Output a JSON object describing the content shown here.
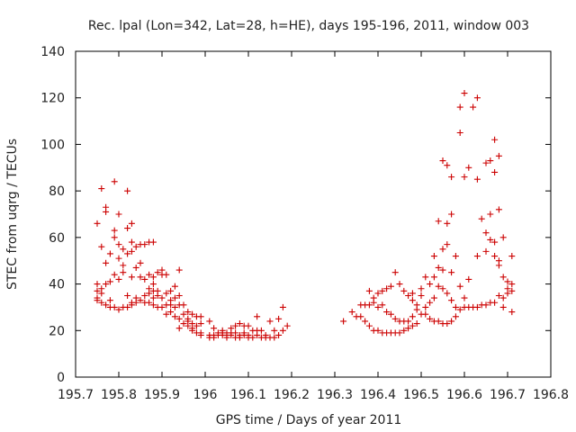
{
  "chart_data": {
    "type": "scatter",
    "title": "Rec. lpal (Lon=342, Lat=28, h=HE), days 195-196, 2011, window 003",
    "xlabel": "GPS time / Days of year 2011",
    "ylabel": "STEC from uqrg / TECUs",
    "xlim": [
      195.7,
      196.8
    ],
    "ylim": [
      0,
      140
    ],
    "xticks": [
      "195.7",
      "195.8",
      "195.9",
      "196",
      "196.1",
      "196.2",
      "196.3",
      "196.4",
      "196.5",
      "196.6",
      "196.7",
      "196.8"
    ],
    "yticks": [
      "0",
      "20",
      "40",
      "60",
      "80",
      "100",
      "120",
      "140"
    ],
    "marker": "plus",
    "color": "#cc0000",
    "grid": false,
    "legend": "none",
    "points": [
      [
        195.75,
        66
      ],
      [
        195.75,
        40
      ],
      [
        195.75,
        37
      ],
      [
        195.75,
        34
      ],
      [
        195.75,
        33
      ],
      [
        195.76,
        81
      ],
      [
        195.76,
        56
      ],
      [
        195.76,
        38
      ],
      [
        195.76,
        36
      ],
      [
        195.76,
        32
      ],
      [
        195.77,
        73
      ],
      [
        195.77,
        71
      ],
      [
        195.77,
        49
      ],
      [
        195.77,
        40
      ],
      [
        195.77,
        31
      ],
      [
        195.78,
        53
      ],
      [
        195.78,
        41
      ],
      [
        195.78,
        33
      ],
      [
        195.78,
        30
      ],
      [
        195.79,
        84
      ],
      [
        195.79,
        63
      ],
      [
        195.79,
        60
      ],
      [
        195.79,
        44
      ],
      [
        195.79,
        30
      ],
      [
        195.8,
        70
      ],
      [
        195.8,
        57
      ],
      [
        195.8,
        51
      ],
      [
        195.8,
        42
      ],
      [
        195.8,
        29
      ],
      [
        195.81,
        55
      ],
      [
        195.81,
        48
      ],
      [
        195.81,
        45
      ],
      [
        195.81,
        30
      ],
      [
        195.82,
        80
      ],
      [
        195.82,
        64
      ],
      [
        195.82,
        53
      ],
      [
        195.82,
        35
      ],
      [
        195.82,
        30
      ],
      [
        195.83,
        66
      ],
      [
        195.83,
        58
      ],
      [
        195.83,
        54
      ],
      [
        195.83,
        43
      ],
      [
        195.83,
        32
      ],
      [
        195.83,
        31
      ],
      [
        195.84,
        56
      ],
      [
        195.84,
        47
      ],
      [
        195.84,
        34
      ],
      [
        195.84,
        32
      ],
      [
        195.85,
        57
      ],
      [
        195.85,
        49
      ],
      [
        195.85,
        43
      ],
      [
        195.85,
        33
      ],
      [
        195.86,
        57
      ],
      [
        195.86,
        42
      ],
      [
        195.86,
        35
      ],
      [
        195.86,
        32
      ],
      [
        195.87,
        58
      ],
      [
        195.87,
        44
      ],
      [
        195.87,
        38
      ],
      [
        195.87,
        36
      ],
      [
        195.87,
        32
      ],
      [
        195.88,
        58
      ],
      [
        195.88,
        43
      ],
      [
        195.88,
        40
      ],
      [
        195.88,
        37
      ],
      [
        195.88,
        34
      ],
      [
        195.88,
        31
      ],
      [
        195.89,
        45
      ],
      [
        195.89,
        37
      ],
      [
        195.89,
        35
      ],
      [
        195.89,
        30
      ],
      [
        195.9,
        46
      ],
      [
        195.9,
        44
      ],
      [
        195.9,
        34
      ],
      [
        195.9,
        30
      ],
      [
        195.91,
        44
      ],
      [
        195.91,
        36
      ],
      [
        195.91,
        31
      ],
      [
        195.91,
        27
      ],
      [
        195.92,
        37
      ],
      [
        195.92,
        33
      ],
      [
        195.92,
        31
      ],
      [
        195.92,
        28
      ],
      [
        195.93,
        39
      ],
      [
        195.93,
        34
      ],
      [
        195.93,
        30
      ],
      [
        195.93,
        26
      ],
      [
        195.94,
        46
      ],
      [
        195.94,
        35
      ],
      [
        195.94,
        31
      ],
      [
        195.94,
        25
      ],
      [
        195.94,
        21
      ],
      [
        195.95,
        31
      ],
      [
        195.95,
        27
      ],
      [
        195.95,
        23
      ],
      [
        195.96,
        28
      ],
      [
        195.96,
        25
      ],
      [
        195.96,
        24
      ],
      [
        195.96,
        22
      ],
      [
        195.97,
        27
      ],
      [
        195.97,
        23
      ],
      [
        195.97,
        21
      ],
      [
        195.97,
        20
      ],
      [
        195.98,
        26
      ],
      [
        195.98,
        22
      ],
      [
        195.98,
        19
      ],
      [
        195.99,
        26
      ],
      [
        195.99,
        23
      ],
      [
        195.99,
        19
      ],
      [
        195.99,
        18
      ],
      [
        196.01,
        24
      ],
      [
        196.01,
        18
      ],
      [
        196.01,
        17
      ],
      [
        196.02,
        21
      ],
      [
        196.02,
        18
      ],
      [
        196.02,
        17
      ],
      [
        196.03,
        19
      ],
      [
        196.03,
        18
      ],
      [
        196.04,
        20
      ],
      [
        196.04,
        19
      ],
      [
        196.04,
        18
      ],
      [
        196.05,
        19
      ],
      [
        196.05,
        18
      ],
      [
        196.05,
        17
      ],
      [
        196.06,
        21
      ],
      [
        196.06,
        19
      ],
      [
        196.06,
        18
      ],
      [
        196.07,
        22
      ],
      [
        196.07,
        19
      ],
      [
        196.07,
        17
      ],
      [
        196.08,
        23
      ],
      [
        196.08,
        18
      ],
      [
        196.08,
        17
      ],
      [
        196.09,
        22
      ],
      [
        196.09,
        19
      ],
      [
        196.09,
        18
      ],
      [
        196.1,
        22
      ],
      [
        196.1,
        18
      ],
      [
        196.1,
        17
      ],
      [
        196.11,
        20
      ],
      [
        196.11,
        17
      ],
      [
        196.12,
        26
      ],
      [
        196.12,
        20
      ],
      [
        196.12,
        18
      ],
      [
        196.13,
        20
      ],
      [
        196.13,
        17
      ],
      [
        196.14,
        18
      ],
      [
        196.14,
        17
      ],
      [
        196.15,
        24
      ],
      [
        196.15,
        17
      ],
      [
        196.16,
        20
      ],
      [
        196.16,
        17
      ],
      [
        196.17,
        25
      ],
      [
        196.17,
        18
      ],
      [
        196.18,
        30
      ],
      [
        196.18,
        20
      ],
      [
        196.19,
        22
      ],
      [
        196.32,
        24
      ],
      [
        196.34,
        28
      ],
      [
        196.35,
        26
      ],
      [
        196.36,
        31
      ],
      [
        196.36,
        26
      ],
      [
        196.37,
        31
      ],
      [
        196.37,
        24
      ],
      [
        196.38,
        37
      ],
      [
        196.38,
        31
      ],
      [
        196.38,
        22
      ],
      [
        196.39,
        34
      ],
      [
        196.39,
        32
      ],
      [
        196.39,
        20
      ],
      [
        196.4,
        36
      ],
      [
        196.4,
        30
      ],
      [
        196.4,
        20
      ],
      [
        196.41,
        37
      ],
      [
        196.41,
        31
      ],
      [
        196.41,
        19
      ],
      [
        196.42,
        38
      ],
      [
        196.42,
        28
      ],
      [
        196.42,
        19
      ],
      [
        196.43,
        39
      ],
      [
        196.43,
        27
      ],
      [
        196.43,
        19
      ],
      [
        196.44,
        45
      ],
      [
        196.44,
        25
      ],
      [
        196.44,
        19
      ],
      [
        196.45,
        40
      ],
      [
        196.45,
        24
      ],
      [
        196.45,
        19
      ],
      [
        196.46,
        37
      ],
      [
        196.46,
        24
      ],
      [
        196.46,
        20
      ],
      [
        196.47,
        35
      ],
      [
        196.47,
        24
      ],
      [
        196.47,
        21
      ],
      [
        196.48,
        36
      ],
      [
        196.48,
        33
      ],
      [
        196.48,
        26
      ],
      [
        196.48,
        22
      ],
      [
        196.49,
        31
      ],
      [
        196.49,
        29
      ],
      [
        196.49,
        23
      ],
      [
        196.5,
        38
      ],
      [
        196.5,
        35
      ],
      [
        196.5,
        27
      ],
      [
        196.51,
        43
      ],
      [
        196.51,
        30
      ],
      [
        196.51,
        27
      ],
      [
        196.52,
        40
      ],
      [
        196.52,
        32
      ],
      [
        196.52,
        25
      ],
      [
        196.53,
        52
      ],
      [
        196.53,
        43
      ],
      [
        196.53,
        34
      ],
      [
        196.53,
        24
      ],
      [
        196.54,
        67
      ],
      [
        196.54,
        47
      ],
      [
        196.54,
        39
      ],
      [
        196.54,
        24
      ],
      [
        196.55,
        93
      ],
      [
        196.55,
        55
      ],
      [
        196.55,
        46
      ],
      [
        196.55,
        38
      ],
      [
        196.55,
        23
      ],
      [
        196.56,
        91
      ],
      [
        196.56,
        66
      ],
      [
        196.56,
        57
      ],
      [
        196.56,
        36
      ],
      [
        196.56,
        23
      ],
      [
        196.57,
        86
      ],
      [
        196.57,
        70
      ],
      [
        196.57,
        45
      ],
      [
        196.57,
        33
      ],
      [
        196.57,
        24
      ],
      [
        196.58,
        52
      ],
      [
        196.58,
        30
      ],
      [
        196.58,
        26
      ],
      [
        196.59,
        116
      ],
      [
        196.59,
        105
      ],
      [
        196.59,
        39
      ],
      [
        196.59,
        29
      ],
      [
        196.6,
        122
      ],
      [
        196.6,
        86
      ],
      [
        196.6,
        34
      ],
      [
        196.6,
        30
      ],
      [
        196.61,
        90
      ],
      [
        196.61,
        42
      ],
      [
        196.61,
        30
      ],
      [
        196.62,
        116
      ],
      [
        196.62,
        30
      ],
      [
        196.63,
        120
      ],
      [
        196.63,
        85
      ],
      [
        196.63,
        52
      ],
      [
        196.63,
        30
      ],
      [
        196.64,
        68
      ],
      [
        196.64,
        31
      ],
      [
        196.65,
        92
      ],
      [
        196.65,
        62
      ],
      [
        196.65,
        54
      ],
      [
        196.65,
        31
      ],
      [
        196.66,
        93
      ],
      [
        196.66,
        70
      ],
      [
        196.66,
        59
      ],
      [
        196.66,
        32
      ],
      [
        196.67,
        102
      ],
      [
        196.67,
        88
      ],
      [
        196.67,
        58
      ],
      [
        196.67,
        52
      ],
      [
        196.67,
        32
      ],
      [
        196.68,
        95
      ],
      [
        196.68,
        72
      ],
      [
        196.68,
        50
      ],
      [
        196.68,
        48
      ],
      [
        196.68,
        35
      ],
      [
        196.69,
        60
      ],
      [
        196.69,
        43
      ],
      [
        196.69,
        34
      ],
      [
        196.69,
        30
      ],
      [
        196.7,
        41
      ],
      [
        196.7,
        38
      ],
      [
        196.7,
        36
      ],
      [
        196.71,
        52
      ],
      [
        196.71,
        40
      ],
      [
        196.71,
        37
      ],
      [
        196.71,
        28
      ]
    ]
  }
}
